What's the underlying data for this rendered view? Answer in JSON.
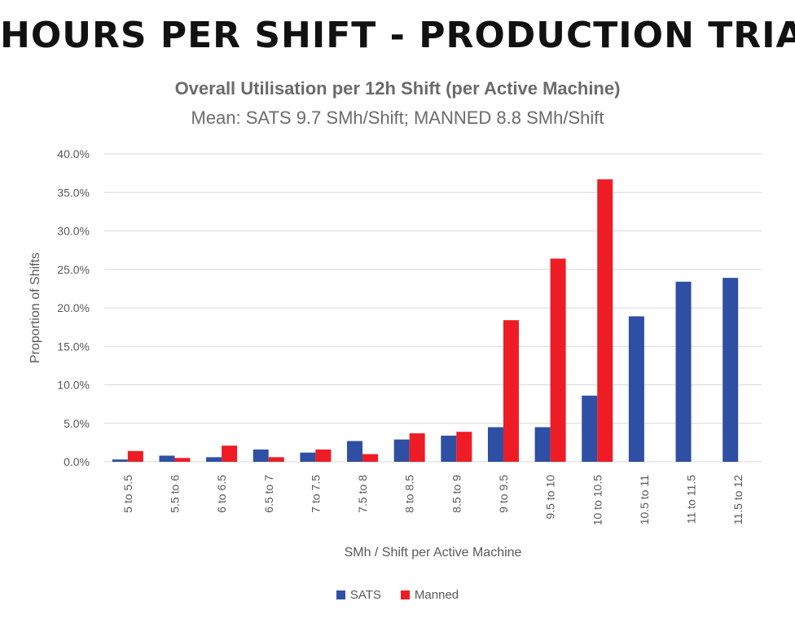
{
  "banner": "HOURS PER SHIFT - PRODUCTION TRIAL",
  "colors": {
    "sats": "#2e4fa3",
    "manned": "#ee1c25",
    "grid": "#d9d9d9",
    "text": "#595959"
  },
  "chart_data": {
    "type": "bar",
    "title": "Overall Utilisation per 12h Shift (per Active Machine)",
    "subtitle": "Mean: SATS 9.7 SMh/Shift; MANNED 8.8 SMh/Shift",
    "xlabel": "SMh / Shift per Active Machine",
    "ylabel": "Proportion of Shifts",
    "ylim": [
      0,
      40
    ],
    "yticks": [
      "0.0%",
      "5.0%",
      "10.0%",
      "15.0%",
      "20.0%",
      "25.0%",
      "30.0%",
      "35.0%",
      "40.0%"
    ],
    "grid": true,
    "legend_position": "bottom",
    "categories": [
      "5 to 5.5",
      "5.5 to 6",
      "6 to 6.5",
      "6.5 to 7",
      "7 to 7.5",
      "7.5 to 8",
      "8 to 8.5",
      "8.5 to 9",
      "9 to 9.5",
      "9.5 to 10",
      "10 to 10.5",
      "10.5 to 11",
      "11 to 11.5",
      "11.5 to 12"
    ],
    "series": [
      {
        "name": "SATS",
        "color": "#2e4fa3",
        "values": [
          0.3,
          0.8,
          0.6,
          1.6,
          1.2,
          2.7,
          2.9,
          3.4,
          4.5,
          4.5,
          8.6,
          18.9,
          23.4,
          23.9
        ]
      },
      {
        "name": "Manned",
        "color": "#ee1c25",
        "values": [
          1.4,
          0.5,
          2.1,
          0.6,
          1.6,
          1.0,
          3.7,
          3.9,
          18.4,
          26.4,
          36.7,
          0,
          0,
          0
        ]
      }
    ]
  }
}
